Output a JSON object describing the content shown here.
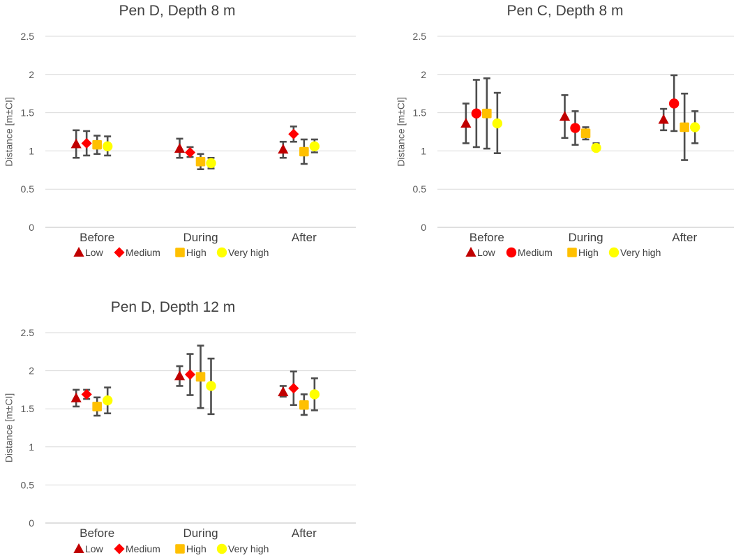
{
  "chart_data": [
    {
      "type": "scatter",
      "title": "Pen D, Depth 8 m",
      "xlabel": "",
      "ylabel": "Distance [m±CI]",
      "ylim": [
        0,
        2.5
      ],
      "yticks": [
        "0",
        "0.5",
        "1",
        "1.5",
        "2",
        "2.5"
      ],
      "categories": [
        "Before",
        "During",
        "After"
      ],
      "grid": "horizontal",
      "legend": "bottom",
      "series": [
        {
          "name": "Low",
          "marker": "triangle",
          "color": "#c00000",
          "values": [
            1.09,
            1.03,
            1.02
          ],
          "ci_low": [
            0.91,
            0.91,
            0.91
          ],
          "ci_high": [
            1.27,
            1.16,
            1.12
          ]
        },
        {
          "name": "Medium",
          "marker": "diamond",
          "color": "#ff0000",
          "values": [
            1.1,
            0.98,
            1.22
          ],
          "ci_low": [
            0.94,
            0.92,
            1.12
          ],
          "ci_high": [
            1.26,
            1.05,
            1.32
          ]
        },
        {
          "name": "High",
          "marker": "square",
          "color": "#ffc000",
          "values": [
            1.08,
            0.86,
            0.99
          ],
          "ci_low": [
            0.96,
            0.76,
            0.83
          ],
          "ci_high": [
            1.2,
            0.96,
            1.15
          ]
        },
        {
          "name": "Very high",
          "marker": "circle",
          "color": "#ffff00",
          "values": [
            1.06,
            0.84,
            1.06
          ],
          "ci_low": [
            0.94,
            0.77,
            0.98
          ],
          "ci_high": [
            1.19,
            0.91,
            1.15
          ]
        }
      ]
    },
    {
      "type": "scatter",
      "title": "Pen C, Depth 8 m",
      "xlabel": "",
      "ylabel": "Distance [m±CI]",
      "ylim": [
        0,
        2.5
      ],
      "yticks": [
        "0",
        "0.5",
        "1",
        "1.5",
        "2",
        "2.5"
      ],
      "categories": [
        "Before",
        "During",
        "After"
      ],
      "grid": "horizontal",
      "legend": "bottom",
      "series": [
        {
          "name": "Low",
          "marker": "triangle",
          "color": "#c00000",
          "values": [
            1.36,
            1.45,
            1.41
          ],
          "ci_low": [
            1.1,
            1.17,
            1.27
          ],
          "ci_high": [
            1.62,
            1.73,
            1.55
          ]
        },
        {
          "name": "Medium",
          "marker": "circle",
          "color": "#ff0000",
          "values": [
            1.49,
            1.3,
            1.62
          ],
          "ci_low": [
            1.05,
            1.08,
            1.26
          ],
          "ci_high": [
            1.93,
            1.52,
            1.99
          ]
        },
        {
          "name": "High",
          "marker": "square",
          "color": "#ffc000",
          "values": [
            1.49,
            1.23,
            1.31
          ],
          "ci_low": [
            1.03,
            1.15,
            0.88
          ],
          "ci_high": [
            1.95,
            1.31,
            1.75
          ]
        },
        {
          "name": "Very high",
          "marker": "circle",
          "color": "#ffff00",
          "values": [
            1.36,
            1.04,
            1.31
          ],
          "ci_low": [
            0.97,
            1.01,
            1.1
          ],
          "ci_high": [
            1.76,
            1.1,
            1.52
          ]
        }
      ]
    },
    {
      "type": "scatter",
      "title": "Pen D, Depth 12 m",
      "xlabel": "",
      "ylabel": "Distance [m±CI]",
      "ylim": [
        0,
        2.5
      ],
      "yticks": [
        "0",
        "0.5",
        "1",
        "1.5",
        "2",
        "2.5"
      ],
      "categories": [
        "Before",
        "During",
        "After"
      ],
      "grid": "horizontal",
      "legend": "bottom",
      "series": [
        {
          "name": "Low",
          "marker": "triangle",
          "color": "#c00000",
          "values": [
            1.64,
            1.93,
            1.72
          ],
          "ci_low": [
            1.53,
            1.8,
            1.66
          ],
          "ci_high": [
            1.75,
            2.06,
            1.8
          ]
        },
        {
          "name": "Medium",
          "marker": "diamond",
          "color": "#ff0000",
          "values": [
            1.69,
            1.95,
            1.77
          ],
          "ci_low": [
            1.63,
            1.68,
            1.55
          ],
          "ci_high": [
            1.75,
            2.22,
            1.99
          ]
        },
        {
          "name": "High",
          "marker": "square",
          "color": "#ffc000",
          "values": [
            1.53,
            1.92,
            1.55
          ],
          "ci_low": [
            1.41,
            1.51,
            1.42
          ],
          "ci_high": [
            1.65,
            2.33,
            1.69
          ]
        },
        {
          "name": "Very high",
          "marker": "circle",
          "color": "#ffff00",
          "values": [
            1.61,
            1.8,
            1.69
          ],
          "ci_low": [
            1.44,
            1.43,
            1.48
          ],
          "ci_high": [
            1.78,
            2.16,
            1.9
          ]
        }
      ]
    }
  ]
}
